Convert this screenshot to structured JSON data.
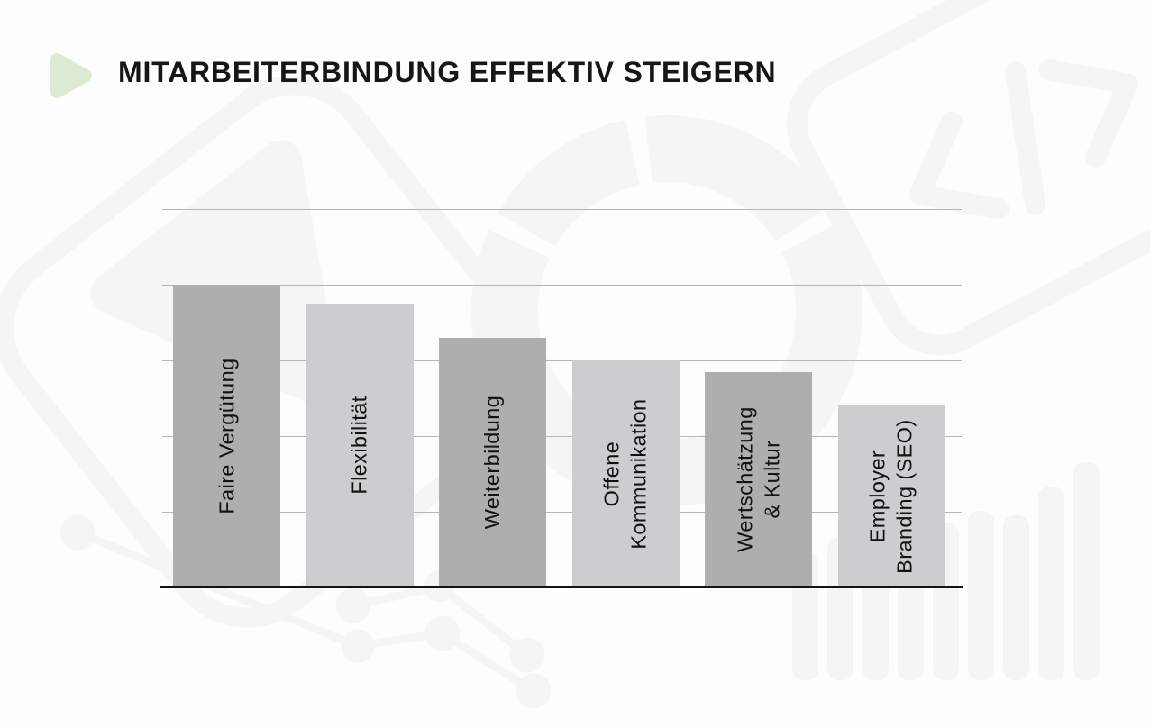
{
  "page": {
    "background_color": "#fdfdfd"
  },
  "header": {
    "title": "MITARBEITERBINDUNG EFFEKTIV STEIGERN",
    "title_color": "#161616",
    "bullet_icon": "play-triangle-icon",
    "bullet_color": "#dcead3"
  },
  "chart_data": {
    "type": "bar",
    "title": "",
    "categories": [
      "Faire Vergütung",
      "Flexibilität",
      "Weiterbildung",
      "Offene Kommunikation",
      "Wertschätzung & Kultur",
      "Employer Branding (SEO)"
    ],
    "category_lines": [
      [
        "Faire Vergütung"
      ],
      [
        "Flexibilität"
      ],
      [
        "Weiterbildung"
      ],
      [
        "Offene",
        "Kommunikation"
      ],
      [
        "Wertschätzung",
        "& Kultur"
      ],
      [
        "Employer",
        "Branding (SEO)"
      ]
    ],
    "values": [
      80,
      75,
      66,
      60,
      57,
      48
    ],
    "bar_colors": [
      "#aeaeae",
      "#cdcdd0",
      "#aeaeae",
      "#cdcdd0",
      "#aeaeae",
      "#cdcdd0"
    ],
    "ylim": [
      0,
      100
    ],
    "gridline_step": 20,
    "grid": true,
    "axis_tick_labels_visible": false,
    "value_labels_visible": false,
    "legend": "none",
    "label_position": "inside-bar-vertical",
    "gridline_color": "#b6b6b6",
    "baseline_color": "#141414"
  },
  "watermark": {
    "color": "#f5f5f5",
    "shapes": [
      "send-message-icon",
      "donut-chart-icon",
      "code-brackets-icon",
      "network-graph-icon",
      "bar-chart-icon"
    ]
  }
}
